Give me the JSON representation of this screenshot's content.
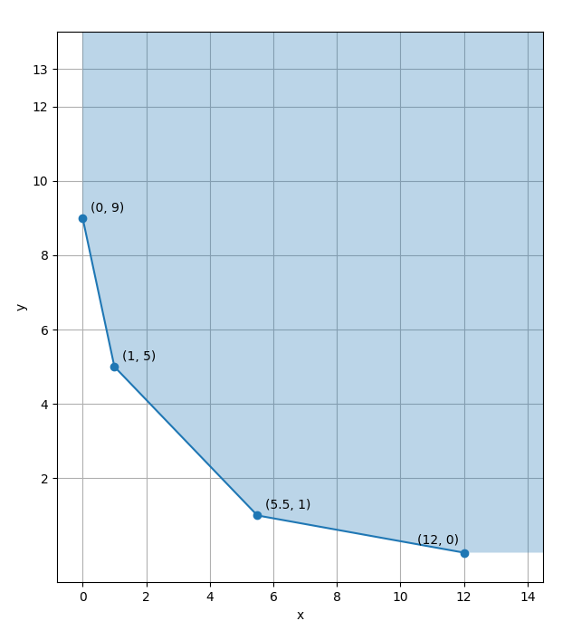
{
  "chart_data": {
    "type": "line",
    "x": [
      0,
      1,
      5.5,
      12
    ],
    "values": [
      9,
      5,
      1,
      0
    ],
    "marker": "o",
    "data_labels": true,
    "value_labels": [
      "(0, 9)",
      "(1, 5)",
      "(5.5, 1)",
      "(12, 0)"
    ],
    "x_label": "x",
    "y_label": "y",
    "xlim": [
      -0.8,
      14.5
    ],
    "ylim": [
      -0.8,
      14.0
    ],
    "xticks": [
      0,
      2,
      4,
      6,
      8,
      10,
      12,
      14
    ],
    "yticks": [
      2,
      4,
      6,
      8,
      10,
      12,
      13
    ],
    "grid": true
  }
}
